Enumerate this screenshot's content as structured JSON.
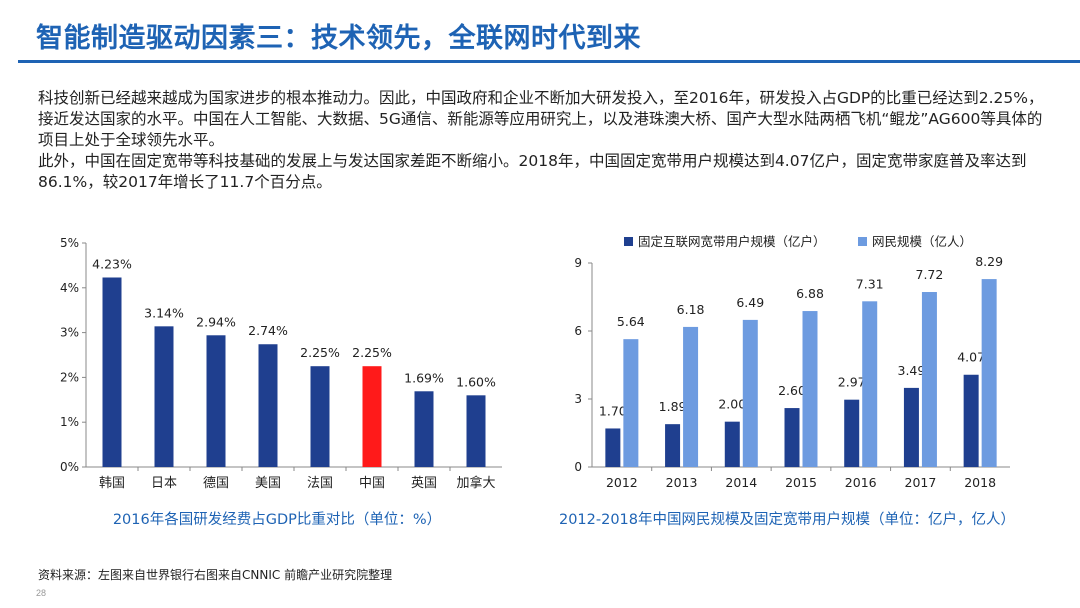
{
  "page": {
    "title": "智能制造驱动因素三：技术领先，全联网时代到来",
    "paragraph1": "科技创新已经越来越成为国家进步的根本推动力。因此，中国政府和企业不断加大研发投入，至2016年，研发投入占GDP的比重已经达到2.25%，接近发达国家的水平。中国在人工智能、大数据、5G通信、新能源等应用研究上，以及港珠澳大桥、国产大型水陆两栖飞机“鲲龙”AG600等具体的项目上处于全球领先水平。",
    "paragraph2": "此外，中国在固定宽带等科技基础的发展上与发达国家差距不断缩小。2018年，中国固定宽带用户规模达到4.07亿户，固定宽带家庭普及率达到86.1%，较2017年增长了11.7个百分点。",
    "source": "资料来源：左图来自世界银行右图来自CNNIC 前瞻产业研究院整理",
    "page_number": "28"
  },
  "colors": {
    "title": "#1e63b4",
    "bar_dark": "#1f3f8f",
    "bar_highlight": "#ff1a1a",
    "bar_light": "#6d9be0",
    "caption": "#1e63b4"
  },
  "chart_data": [
    {
      "type": "bar",
      "title": "2016年各国研发经费占GDP比重对比（单位：%）",
      "categories": [
        "韩国",
        "日本",
        "德国",
        "美国",
        "法国",
        "中国",
        "英国",
        "加拿大"
      ],
      "values": [
        4.23,
        3.14,
        2.94,
        2.74,
        2.25,
        2.25,
        1.69,
        1.6
      ],
      "data_labels": [
        "4.23%",
        "3.14%",
        "2.94%",
        "2.74%",
        "2.25%",
        "2.25%",
        "1.69%",
        "1.60%"
      ],
      "highlight_category": "中国",
      "ylim": [
        0,
        5
      ],
      "yticks": [
        0,
        1,
        2,
        3,
        4,
        5
      ],
      "ytick_labels": [
        "0%",
        "1%",
        "2%",
        "3%",
        "4%",
        "5%"
      ],
      "grid": false
    },
    {
      "type": "bar",
      "title": "2012-2018年中国网民规模及固定宽带用户规模（单位：亿户，亿人）",
      "categories": [
        "2012",
        "2013",
        "2014",
        "2015",
        "2016",
        "2017",
        "2018"
      ],
      "series": [
        {
          "name": "固定互联网宽带用户规模（亿户）",
          "values": [
            1.7,
            1.89,
            2.0,
            2.6,
            2.97,
            3.49,
            4.07
          ],
          "labels": [
            "1.70",
            "1.89",
            "2.00",
            "2.60",
            "2.97",
            "3.49",
            "4.07"
          ]
        },
        {
          "name": "网民规模（亿人）",
          "values": [
            5.64,
            6.18,
            6.49,
            6.88,
            7.31,
            7.72,
            8.29
          ],
          "labels": [
            "5.64",
            "6.18",
            "6.49",
            "6.88",
            "7.31",
            "7.72",
            "8.29"
          ]
        }
      ],
      "ylim": [
        0,
        9
      ],
      "yticks": [
        0,
        3,
        6,
        9
      ],
      "ytick_labels": [
        "0",
        "3",
        "6",
        "9"
      ],
      "legend": "top",
      "grid": false
    }
  ]
}
